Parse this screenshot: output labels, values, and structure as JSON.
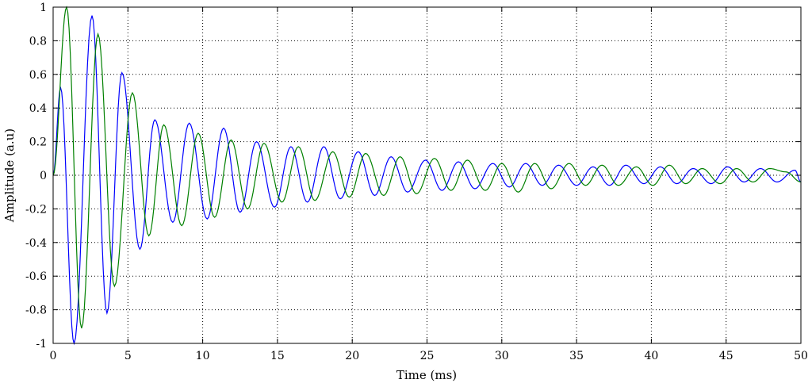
{
  "chart_data": {
    "type": "line",
    "xlabel": "Time (ms)",
    "ylabel": "Amplitude (a.u)",
    "xlim": [
      0,
      50
    ],
    "ylim": [
      -1,
      1
    ],
    "xticks": [
      "0",
      "5",
      "10",
      "15",
      "20",
      "25",
      "30",
      "35",
      "40",
      "45",
      "50"
    ],
    "yticks": [
      "1",
      "0.8",
      "0.6",
      "0.4",
      "0.2",
      "0",
      "-0.2",
      "-0.4",
      "-0.6",
      "-0.8",
      "-1"
    ],
    "grid": true,
    "series": [
      {
        "color": "#0000ff",
        "peaks": [
          {
            "x": 0.5,
            "y": 0.52
          },
          {
            "x": 1.4,
            "y": -1.0
          },
          {
            "x": 2.6,
            "y": 0.95
          },
          {
            "x": 3.6,
            "y": -0.82
          },
          {
            "x": 4.6,
            "y": 0.61
          },
          {
            "x": 5.8,
            "y": -0.44
          },
          {
            "x": 6.8,
            "y": 0.33
          },
          {
            "x": 8.0,
            "y": -0.28
          },
          {
            "x": 9.1,
            "y": 0.31
          },
          {
            "x": 10.3,
            "y": -0.26
          },
          {
            "x": 11.4,
            "y": 0.28
          },
          {
            "x": 12.5,
            "y": -0.22
          },
          {
            "x": 13.6,
            "y": 0.2
          },
          {
            "x": 14.8,
            "y": -0.19
          },
          {
            "x": 15.9,
            "y": 0.17
          },
          {
            "x": 17.0,
            "y": -0.16
          },
          {
            "x": 18.1,
            "y": 0.17
          },
          {
            "x": 19.2,
            "y": -0.14
          },
          {
            "x": 20.4,
            "y": 0.14
          },
          {
            "x": 21.5,
            "y": -0.12
          },
          {
            "x": 22.6,
            "y": 0.11
          },
          {
            "x": 23.7,
            "y": -0.1
          },
          {
            "x": 24.9,
            "y": 0.09
          },
          {
            "x": 26.0,
            "y": -0.09
          },
          {
            "x": 27.1,
            "y": 0.08
          },
          {
            "x": 28.2,
            "y": -0.08
          },
          {
            "x": 29.4,
            "y": 0.07
          },
          {
            "x": 30.5,
            "y": -0.07
          },
          {
            "x": 31.6,
            "y": 0.07
          },
          {
            "x": 32.7,
            "y": -0.06
          },
          {
            "x": 33.8,
            "y": 0.06
          },
          {
            "x": 35.0,
            "y": -0.06
          },
          {
            "x": 36.1,
            "y": 0.05
          },
          {
            "x": 37.2,
            "y": -0.06
          },
          {
            "x": 38.3,
            "y": 0.06
          },
          {
            "x": 39.5,
            "y": -0.05
          },
          {
            "x": 40.6,
            "y": 0.05
          },
          {
            "x": 41.7,
            "y": -0.05
          },
          {
            "x": 42.8,
            "y": 0.04
          },
          {
            "x": 44.0,
            "y": -0.05
          },
          {
            "x": 45.1,
            "y": 0.05
          },
          {
            "x": 46.2,
            "y": -0.04
          },
          {
            "x": 47.3,
            "y": 0.04
          },
          {
            "x": 48.4,
            "y": -0.04
          },
          {
            "x": 49.6,
            "y": 0.03
          },
          {
            "x": 50.0,
            "y": -0.04
          }
        ]
      },
      {
        "color": "#008000",
        "peaks": [
          {
            "x": 0.9,
            "y": 1.0
          },
          {
            "x": 1.9,
            "y": -0.91
          },
          {
            "x": 3.0,
            "y": 0.84
          },
          {
            "x": 4.1,
            "y": -0.66
          },
          {
            "x": 5.3,
            "y": 0.49
          },
          {
            "x": 6.4,
            "y": -0.36
          },
          {
            "x": 7.4,
            "y": 0.3
          },
          {
            "x": 8.6,
            "y": -0.3
          },
          {
            "x": 9.7,
            "y": 0.25
          },
          {
            "x": 10.8,
            "y": -0.25
          },
          {
            "x": 11.9,
            "y": 0.21
          },
          {
            "x": 13.0,
            "y": -0.2
          },
          {
            "x": 14.1,
            "y": 0.19
          },
          {
            "x": 15.3,
            "y": -0.16
          },
          {
            "x": 16.4,
            "y": 0.17
          },
          {
            "x": 17.5,
            "y": -0.15
          },
          {
            "x": 18.7,
            "y": 0.14
          },
          {
            "x": 19.8,
            "y": -0.13
          },
          {
            "x": 20.9,
            "y": 0.13
          },
          {
            "x": 22.1,
            "y": -0.12
          },
          {
            "x": 23.2,
            "y": 0.11
          },
          {
            "x": 24.3,
            "y": -0.11
          },
          {
            "x": 25.5,
            "y": 0.1
          },
          {
            "x": 26.6,
            "y": -0.09
          },
          {
            "x": 27.7,
            "y": 0.09
          },
          {
            "x": 28.9,
            "y": -0.09
          },
          {
            "x": 30.0,
            "y": 0.07
          },
          {
            "x": 31.1,
            "y": -0.1
          },
          {
            "x": 32.2,
            "y": 0.07
          },
          {
            "x": 33.3,
            "y": -0.08
          },
          {
            "x": 34.5,
            "y": 0.07
          },
          {
            "x": 35.6,
            "y": -0.06
          },
          {
            "x": 36.7,
            "y": 0.06
          },
          {
            "x": 37.8,
            "y": -0.06
          },
          {
            "x": 39.0,
            "y": 0.05
          },
          {
            "x": 40.1,
            "y": -0.06
          },
          {
            "x": 41.2,
            "y": 0.06
          },
          {
            "x": 42.3,
            "y": -0.05
          },
          {
            "x": 43.4,
            "y": 0.04
          },
          {
            "x": 44.6,
            "y": -0.05
          },
          {
            "x": 45.7,
            "y": 0.04
          },
          {
            "x": 46.8,
            "y": -0.04
          },
          {
            "x": 47.9,
            "y": 0.04
          },
          {
            "x": 49.0,
            "y": 0.02
          },
          {
            "x": 50.0,
            "y": -0.04
          }
        ]
      }
    ]
  }
}
